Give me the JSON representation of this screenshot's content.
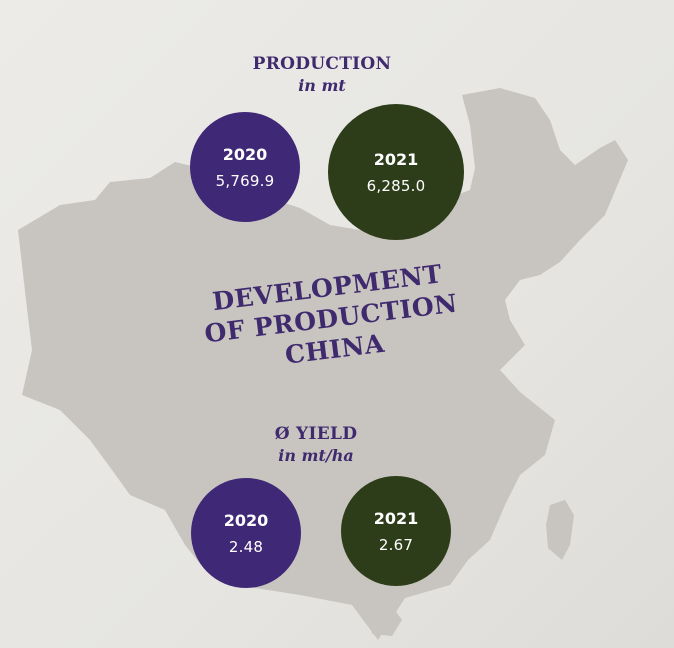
{
  "production": {
    "heading": "PRODUCTION",
    "unit": "in mt",
    "items": [
      {
        "year": "2020",
        "value": "5,769.9",
        "color": "#3f2876"
      },
      {
        "year": "2021",
        "value": "6,285.0",
        "color": "#2e3d19"
      }
    ]
  },
  "title": {
    "line1": "DEVELOPMENT",
    "line2": "OF PRODUCTION",
    "line3": "CHINA"
  },
  "yield": {
    "heading": "Ø YIELD",
    "unit": "in mt/ha",
    "items": [
      {
        "year": "2020",
        "value": "2.48",
        "color": "#3f2876"
      },
      {
        "year": "2021",
        "value": "2.67",
        "color": "#2e3d19"
      }
    ]
  },
  "colors": {
    "map": "#c8c5c1",
    "accent_purple": "#3f2a6e",
    "background": "#e7e6e2"
  }
}
